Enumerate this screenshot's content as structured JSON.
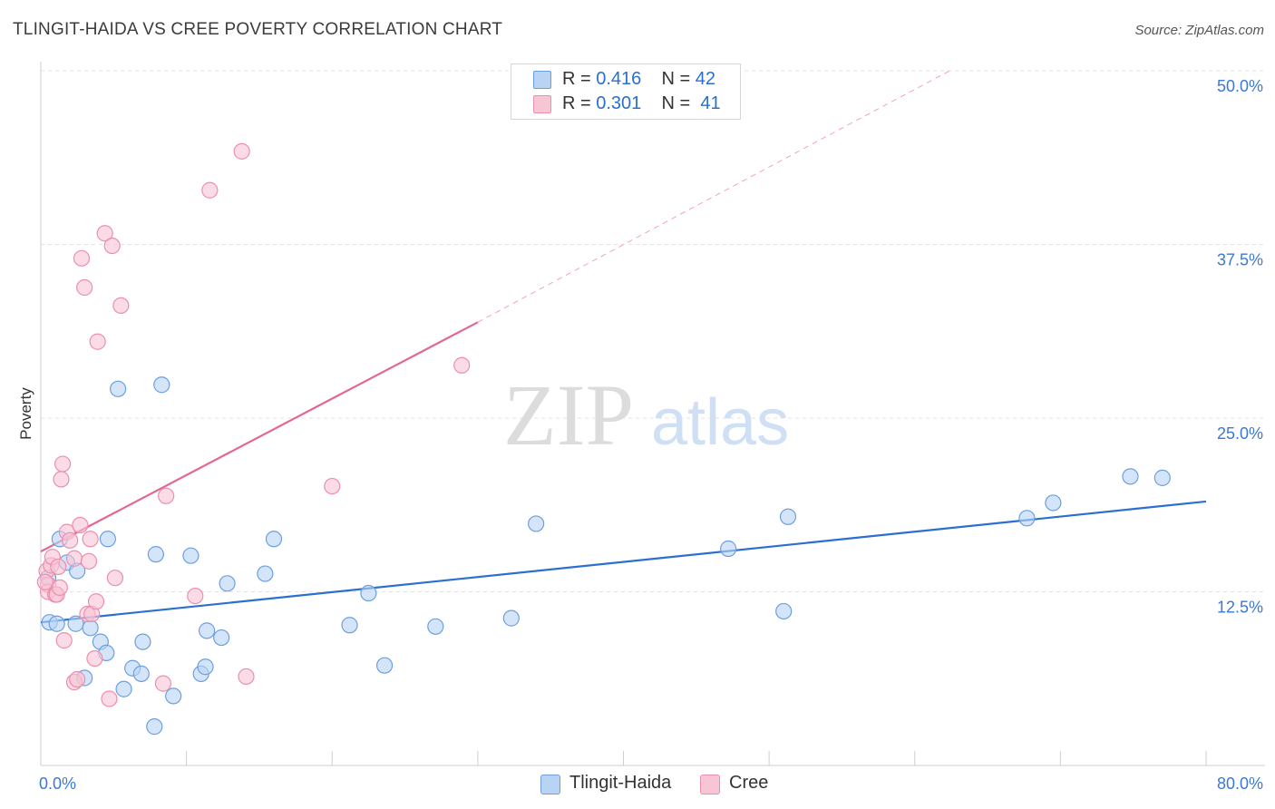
{
  "title": "TLINGIT-HAIDA VS CREE POVERTY CORRELATION CHART",
  "source": "Source: ZipAtlas.com",
  "watermark": {
    "zip": "ZIP",
    "atlas": "atlas"
  },
  "legend": {
    "rows": [
      {
        "r_label": "R = ",
        "r_value": "0.416",
        "n_label": "N = ",
        "n_value": "42"
      },
      {
        "r_label": "R = ",
        "r_value": "0.301",
        "n_label": "N = ",
        "n_value": "41"
      }
    ]
  },
  "bottom_legend": [
    "Tlingit-Haida",
    "Cree"
  ],
  "colors": {
    "blue_fill": "#b9d3f5",
    "blue_stroke": "#6c9fe0",
    "blue_line": "#2c6fd1",
    "pink_fill": "#f8c5d5",
    "pink_stroke": "#ec8fac",
    "pink_line": "#e36690",
    "axis_label": "#3b78d8",
    "grid": "#e3e3e3"
  },
  "chart_data": {
    "type": "scatter",
    "title": "TLINGIT-HAIDA VS CREE POVERTY CORRELATION CHART",
    "xlabel": "",
    "ylabel": "Poverty",
    "xlim": [
      0,
      80
    ],
    "ylim": [
      0,
      50
    ],
    "x_tick_labels": [
      "0.0%",
      "80.0%"
    ],
    "y_ticks": [
      12.5,
      25.0,
      37.5,
      50.0
    ],
    "y_tick_labels": [
      "12.5%",
      "25.0%",
      "37.5%",
      "50.0%"
    ],
    "grid": true,
    "series": [
      {
        "name": "Tlingit-Haida",
        "color": "#6c9fe0",
        "r": 0.416,
        "n": 42,
        "trend": {
          "x": [
            0,
            80
          ],
          "y": [
            10.3,
            19.0
          ],
          "style": "solid"
        },
        "points": [
          [
            0.5,
            13.5
          ],
          [
            0.6,
            10.3
          ],
          [
            1.1,
            10.2
          ],
          [
            1.3,
            16.3
          ],
          [
            1.8,
            14.6
          ],
          [
            2.5,
            14.0
          ],
          [
            2.4,
            10.2
          ],
          [
            3.0,
            6.3
          ],
          [
            3.4,
            9.9
          ],
          [
            4.1,
            8.9
          ],
          [
            4.5,
            8.1
          ],
          [
            4.6,
            16.3
          ],
          [
            5.3,
            27.1
          ],
          [
            5.7,
            5.5
          ],
          [
            6.3,
            7.0
          ],
          [
            6.9,
            6.6
          ],
          [
            7.0,
            8.9
          ],
          [
            7.8,
            2.8
          ],
          [
            7.9,
            15.2
          ],
          [
            8.3,
            27.4
          ],
          [
            9.1,
            5.0
          ],
          [
            10.3,
            15.1
          ],
          [
            11.0,
            6.6
          ],
          [
            11.3,
            7.1
          ],
          [
            11.4,
            9.7
          ],
          [
            12.4,
            9.2
          ],
          [
            12.8,
            13.1
          ],
          [
            15.4,
            13.8
          ],
          [
            16.0,
            16.3
          ],
          [
            21.2,
            10.1
          ],
          [
            22.5,
            12.4
          ],
          [
            23.6,
            7.2
          ],
          [
            27.1,
            10.0
          ],
          [
            32.3,
            10.6
          ],
          [
            34.0,
            17.4
          ],
          [
            47.2,
            15.6
          ],
          [
            51.0,
            11.1
          ],
          [
            51.3,
            17.9
          ],
          [
            67.7,
            17.8
          ],
          [
            69.5,
            18.9
          ],
          [
            74.8,
            20.8
          ],
          [
            77.0,
            20.7
          ]
        ]
      },
      {
        "name": "Cree",
        "color": "#ec8fac",
        "r": 0.301,
        "n": 41,
        "trend": {
          "x": [
            0,
            30
          ],
          "y": [
            15.4,
            31.9
          ],
          "style": "solid",
          "extension": {
            "x": [
              30,
              62.4
            ],
            "y": [
              31.9,
              50.0
            ],
            "style": "dashed"
          }
        },
        "points": [
          [
            0.4,
            14.0
          ],
          [
            0.5,
            13.0
          ],
          [
            0.5,
            12.5
          ],
          [
            0.7,
            14.4
          ],
          [
            0.8,
            15.0
          ],
          [
            1.0,
            12.3
          ],
          [
            1.1,
            12.3
          ],
          [
            1.2,
            14.3
          ],
          [
            1.3,
            12.8
          ],
          [
            1.4,
            20.6
          ],
          [
            1.5,
            21.7
          ],
          [
            1.6,
            9.0
          ],
          [
            1.8,
            16.8
          ],
          [
            2.0,
            16.2
          ],
          [
            2.3,
            14.9
          ],
          [
            2.3,
            6.0
          ],
          [
            2.5,
            6.2
          ],
          [
            2.7,
            17.3
          ],
          [
            2.8,
            36.5
          ],
          [
            3.0,
            34.4
          ],
          [
            3.2,
            10.9
          ],
          [
            3.3,
            14.7
          ],
          [
            3.4,
            16.3
          ],
          [
            3.5,
            10.9
          ],
          [
            3.7,
            7.7
          ],
          [
            3.8,
            11.8
          ],
          [
            3.9,
            30.5
          ],
          [
            4.4,
            38.3
          ],
          [
            4.7,
            4.8
          ],
          [
            4.9,
            37.4
          ],
          [
            5.1,
            13.5
          ],
          [
            5.5,
            33.1
          ],
          [
            8.4,
            5.9
          ],
          [
            8.6,
            19.4
          ],
          [
            10.6,
            12.2
          ],
          [
            11.6,
            41.4
          ],
          [
            13.8,
            44.2
          ],
          [
            14.1,
            6.4
          ],
          [
            20.0,
            20.1
          ],
          [
            28.9,
            28.8
          ],
          [
            0.3,
            13.2
          ]
        ]
      }
    ]
  }
}
